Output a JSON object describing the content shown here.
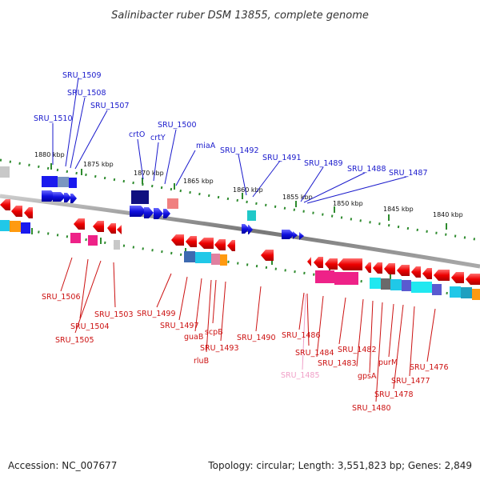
{
  "title": "Salinibacter ruber DSM 13855, complete genome",
  "footer": {
    "accession": "Accession: NC_007677",
    "info": "Topology: circular; Length: 3,551,823 bp; Genes: 2,849"
  },
  "colors": {
    "top_label": "#1a1acc",
    "bottom_label": "#cc1111",
    "faded_label": "#f0a0c8",
    "backbone": "#888888",
    "tick": "#2e8b2e"
  },
  "kbp_marks": [
    "1880 kbp",
    "1875 kbp",
    "1870 kbp",
    "1865 kbp",
    "1860 kbp",
    "1855 kbp",
    "1850 kbp",
    "1845 kbp",
    "1840 kbp"
  ],
  "top_labels": [
    "SRU_1509",
    "SRU_1508",
    "SRU_1507",
    "SRU_1510",
    "crtO",
    "crtY",
    "SRU_1500",
    "miaA",
    "SRU_1492",
    "SRU_1491",
    "SRU_1489",
    "SRU_1488",
    "SRU_1487"
  ],
  "bottom_labels": [
    "SRU_1506",
    "SRU_1504",
    "SRU_1505",
    "SRU_1503",
    "SRU_1499",
    "SRU_1497",
    "guaB",
    "scpB",
    "SRU_1493",
    "rluB",
    "SRU_1490",
    "SRU_1486",
    "SRU_1484",
    "SRU_1485",
    "SRU_1483",
    "SRU_1482",
    "gpsA",
    "SRU_1480",
    "purM",
    "SRU_1478",
    "SRU_1477",
    "SRU_1476"
  ]
}
